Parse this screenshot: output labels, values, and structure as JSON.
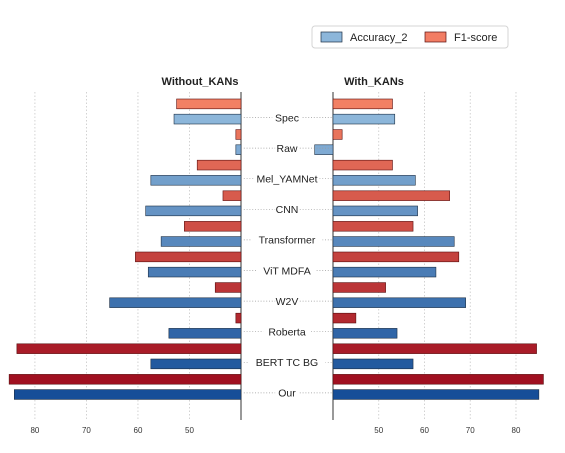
{
  "chart_data": {
    "type": "bar",
    "orientation": "horizontal-mirrored",
    "grid": "vertical dashed",
    "legend": {
      "placement": "top-right",
      "labels": [
        "Accuracy_2",
        "F1-score"
      ]
    },
    "categories": [
      "Spec",
      "Raw",
      "Mel_YAMNet",
      "CNN",
      "Transformer",
      "ViT  MDFA",
      "W2V",
      "Roberta",
      "BERT  TC  BG",
      "Our"
    ],
    "series": [
      {
        "name": "Accuracy_2"
      },
      {
        "name": "F1-score"
      }
    ],
    "panels": [
      {
        "title": "Without_KANs",
        "xlim": [
          40,
          86
        ],
        "xaxis_reversed": true,
        "xticks": [
          80,
          70,
          60,
          50
        ],
        "accuracy_2": [
          53,
          41,
          57.5,
          58.5,
          55.5,
          58,
          65.5,
          54,
          57.5,
          84
        ],
        "f1_score": [
          52.5,
          41,
          48.5,
          43.5,
          51,
          60.5,
          45,
          41,
          83.5,
          85
        ]
      },
      {
        "title": "With_KANs",
        "xlim": [
          40,
          87
        ],
        "xaxis_reversed": false,
        "xticks": [
          50,
          60,
          70,
          80
        ],
        "accuracy_2": [
          53.5,
          36,
          58,
          58.5,
          66.5,
          62.5,
          69,
          54,
          57.5,
          85
        ],
        "f1_score": [
          53,
          42,
          53,
          65.5,
          57.5,
          67.5,
          51.5,
          45,
          84.5,
          86
        ]
      }
    ]
  }
}
